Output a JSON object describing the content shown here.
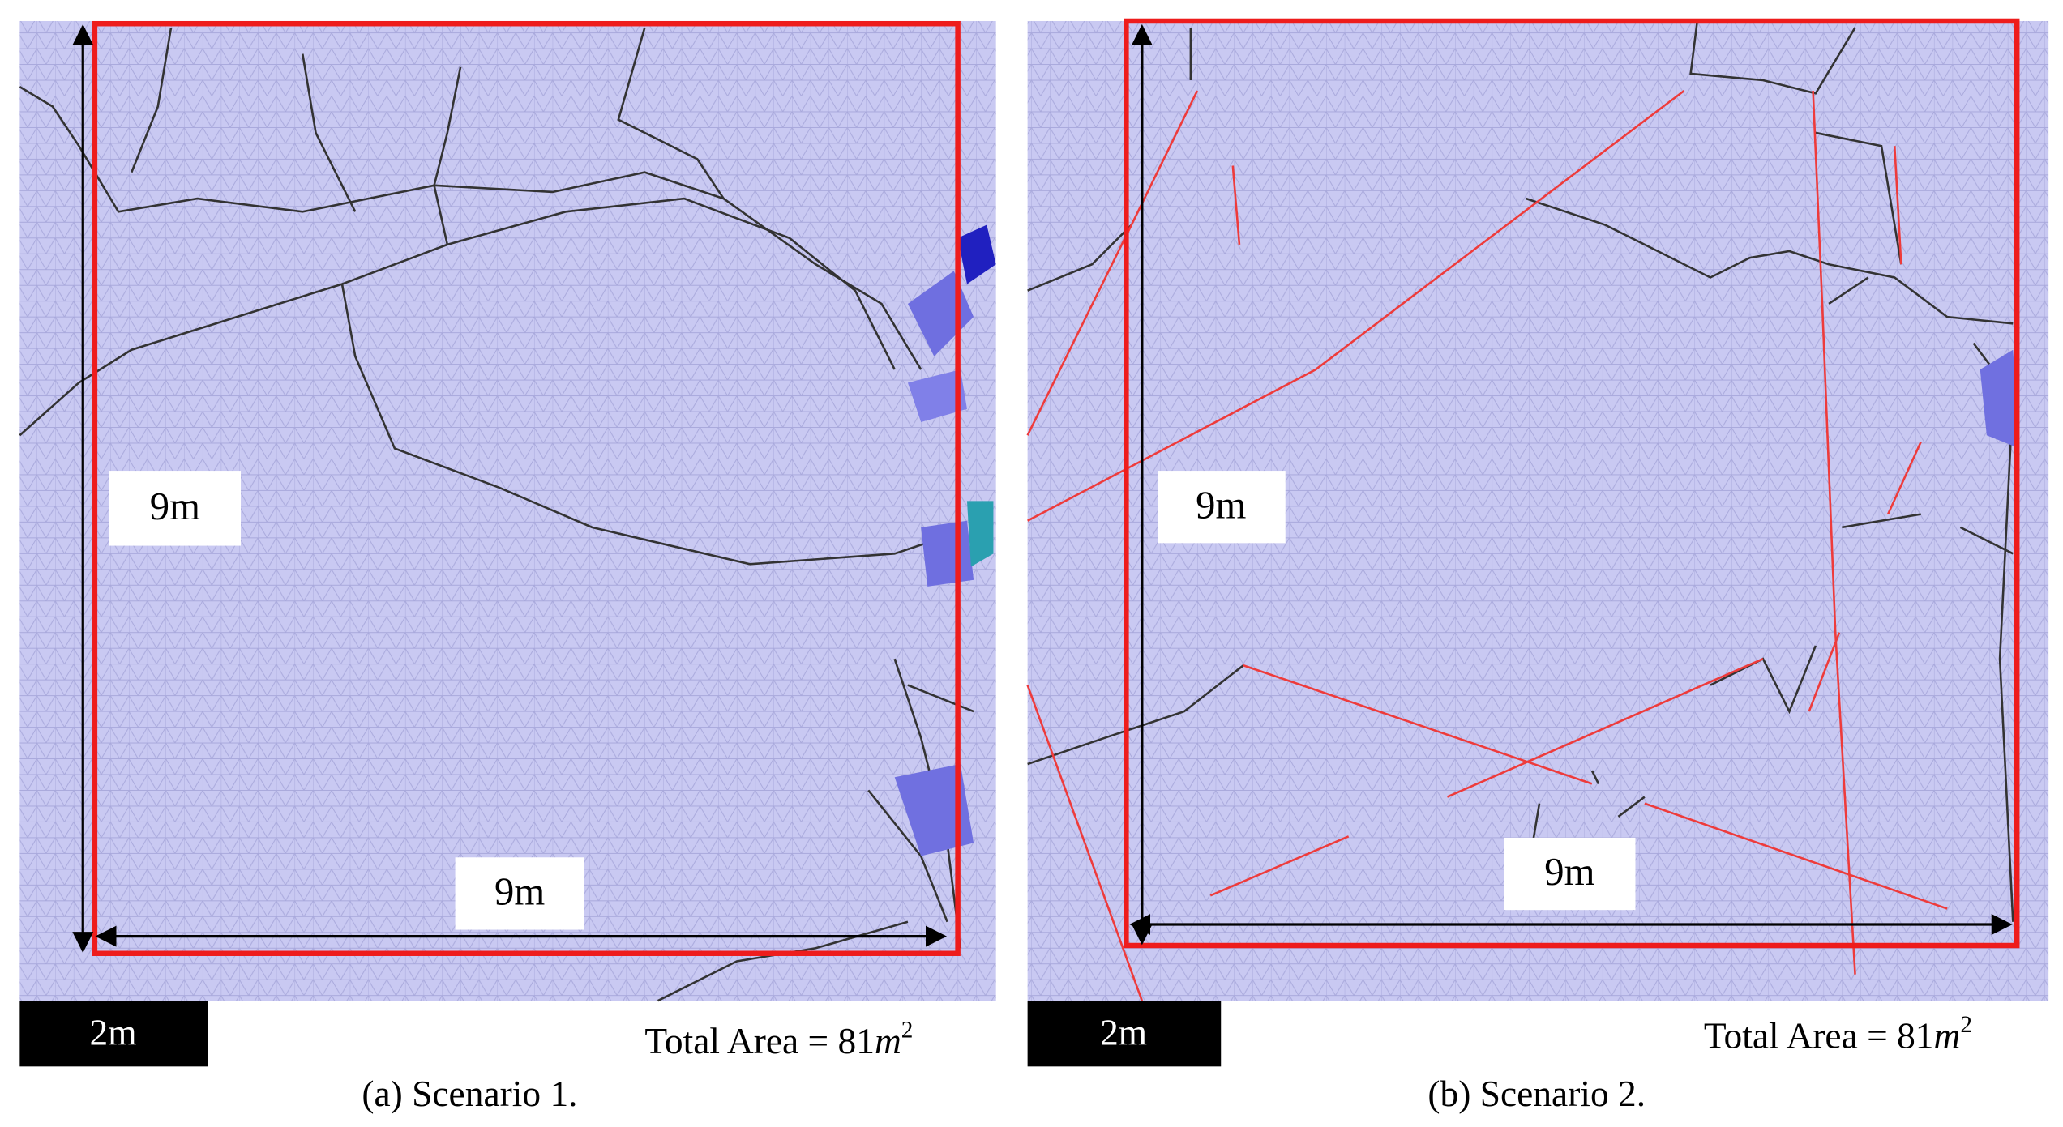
{
  "panels": [
    {
      "vertical_label": "9m",
      "horizontal_label": "9m",
      "scale_bar": "2m",
      "area_text": "Total Area = 81",
      "area_unit": "m",
      "area_exponent": "2",
      "caption": "(a) Scenario 1."
    },
    {
      "vertical_label": "9m",
      "horizontal_label": "9m",
      "scale_bar": "2m",
      "area_text": "Total Area = 81",
      "area_unit": "m",
      "area_exponent": "2",
      "caption": "(b) Scenario 2."
    }
  ]
}
